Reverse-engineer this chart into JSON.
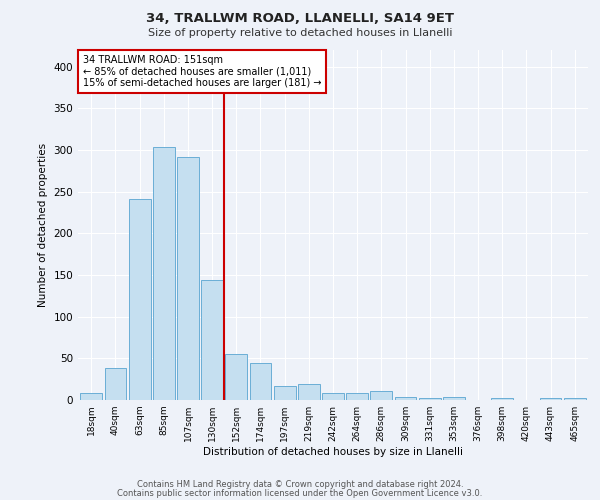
{
  "title": "34, TRALLWM ROAD, LLANELLI, SA14 9ET",
  "subtitle": "Size of property relative to detached houses in Llanelli",
  "xlabel": "Distribution of detached houses by size in Llanelli",
  "ylabel": "Number of detached properties",
  "categories": [
    "18sqm",
    "40sqm",
    "63sqm",
    "85sqm",
    "107sqm",
    "130sqm",
    "152sqm",
    "174sqm",
    "197sqm",
    "219sqm",
    "242sqm",
    "264sqm",
    "286sqm",
    "309sqm",
    "331sqm",
    "353sqm",
    "376sqm",
    "398sqm",
    "420sqm",
    "443sqm",
    "465sqm"
  ],
  "values": [
    8,
    39,
    241,
    304,
    292,
    144,
    55,
    45,
    17,
    19,
    9,
    9,
    11,
    4,
    3,
    4,
    0,
    3,
    0,
    3,
    3
  ],
  "bar_color": "#c5dff0",
  "bar_edge_color": "#6aaed6",
  "vline_x_index": 5.5,
  "vline_color": "#cc0000",
  "annotation_text": "34 TRALLWM ROAD: 151sqm\n← 85% of detached houses are smaller (1,011)\n15% of semi-detached houses are larger (181) →",
  "annotation_box_color": "#ffffff",
  "annotation_box_edge_color": "#cc0000",
  "ylim": [
    0,
    420
  ],
  "yticks": [
    0,
    50,
    100,
    150,
    200,
    250,
    300,
    350,
    400
  ],
  "background_color": "#eef2f9",
  "grid_color": "#ffffff",
  "footer_line1": "Contains HM Land Registry data © Crown copyright and database right 2024.",
  "footer_line2": "Contains public sector information licensed under the Open Government Licence v3.0."
}
